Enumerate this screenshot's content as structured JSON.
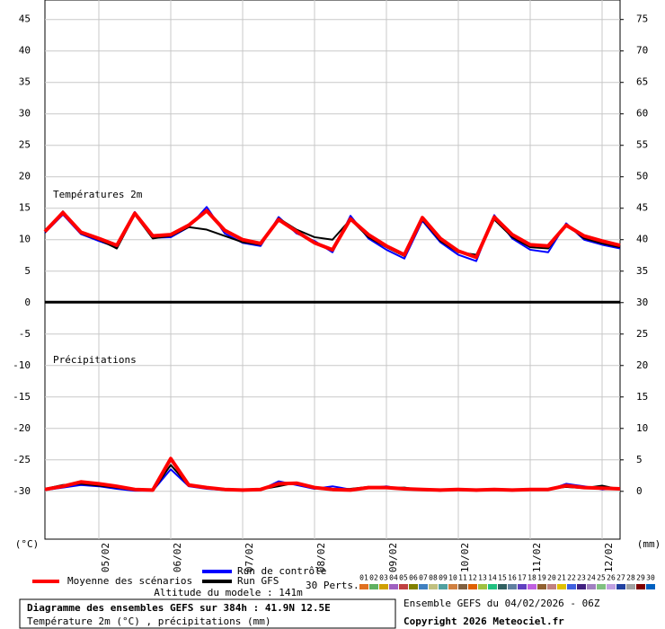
{
  "chart_data": {
    "type": "line",
    "temperature_label": "Températures 2m",
    "precipitation_label": "Précipitations",
    "ylabel": "(°C)",
    "y2label": "(mm)",
    "x": [
      0,
      6,
      12,
      18,
      24,
      30,
      36,
      42,
      48,
      54,
      60,
      66,
      72,
      78,
      84,
      90,
      96,
      102,
      108,
      114,
      120,
      126,
      132,
      138,
      144,
      150,
      156,
      162,
      168,
      174,
      180,
      186,
      192
    ],
    "xlim": [
      0,
      192
    ],
    "xticks": [
      {
        "value": 18,
        "label": "05/02"
      },
      {
        "value": 42,
        "label": "06/02"
      },
      {
        "value": 66,
        "label": "07/02"
      },
      {
        "value": 90,
        "label": "08/02"
      },
      {
        "value": 114,
        "label": "09/02"
      },
      {
        "value": 138,
        "label": "10/02"
      },
      {
        "value": 162,
        "label": "11/02"
      },
      {
        "value": 186,
        "label": "12/02"
      }
    ],
    "ylim": [
      -37.6,
      48.1
    ],
    "yticks": [
      45,
      40,
      35,
      30,
      25,
      20,
      15,
      10,
      5,
      0,
      -5,
      -10,
      -15,
      -20,
      -25,
      -30
    ],
    "y2lim": [
      -7.6,
      78.1
    ],
    "y2ticks": [
      75,
      70,
      65,
      60,
      55,
      50,
      45,
      40,
      35,
      30,
      25,
      20,
      15,
      10,
      5,
      0
    ],
    "grid": true,
    "series": [
      {
        "name": "Moyenne des scénarios",
        "color": "#ff0000",
        "values": [
          11.3,
          14.3,
          11.2,
          10.2,
          9.1,
          14.2,
          10.6,
          10.8,
          12.3,
          14.6,
          11.5,
          10.0,
          9.4,
          13.2,
          11.3,
          9.5,
          8.4,
          13.3,
          10.8,
          9.0,
          7.6,
          13.5,
          10.2,
          8.2,
          7.2,
          13.6,
          10.8,
          9.2,
          9.0,
          12.3,
          10.6,
          9.8,
          9.1
        ]
      },
      {
        "name": "Run de contrôle",
        "color": "#0000ff",
        "values": [
          11.1,
          14.0,
          10.9,
          9.8,
          8.8,
          14.4,
          10.3,
          10.4,
          12.0,
          15.2,
          11.0,
          9.5,
          9.0,
          13.6,
          11.0,
          9.8,
          8.0,
          13.8,
          10.2,
          8.4,
          7.0,
          13.0,
          9.6,
          7.6,
          6.6,
          13.9,
          10.2,
          8.4,
          8.0,
          12.6,
          10.0,
          9.2,
          8.6
        ]
      },
      {
        "name": "Run GFS",
        "color": "#000000",
        "values": [
          11.2,
          14.5,
          11.0,
          10.0,
          8.6,
          14.0,
          10.2,
          10.6,
          12.0,
          11.6,
          10.6,
          9.6,
          9.2,
          13.4,
          11.6,
          10.4,
          10.0,
          13.2,
          10.4,
          8.8,
          7.4,
          13.2,
          9.8,
          8.0,
          7.6,
          13.2,
          10.4,
          8.8,
          8.6,
          12.4,
          10.2,
          9.4,
          8.8
        ]
      },
      {
        "color": "#ff0000",
        "axis": "y2",
        "values": [
          0.3,
          0.8,
          1.5,
          1.2,
          0.8,
          0.3,
          0.2,
          5.2,
          1.0,
          0.6,
          0.3,
          0.2,
          0.3,
          1.2,
          1.3,
          0.6,
          0.3,
          0.2,
          0.6,
          0.6,
          0.4,
          0.3,
          0.2,
          0.3,
          0.2,
          0.3,
          0.2,
          0.3,
          0.3,
          0.9,
          0.6,
          0.5,
          0.4
        ]
      },
      {
        "color": "#0000ff",
        "axis": "y2",
        "values": [
          0.2,
          0.6,
          1.0,
          0.8,
          0.4,
          0.1,
          0.1,
          3.5,
          0.8,
          0.4,
          0.2,
          0.1,
          0.2,
          1.6,
          1.0,
          0.4,
          0.8,
          0.3,
          0.5,
          0.8,
          0.3,
          0.2,
          0.1,
          0.2,
          0.1,
          0.2,
          0.1,
          0.2,
          0.2,
          1.2,
          0.8,
          0.3,
          0.5
        ]
      },
      {
        "color": "#000000",
        "axis": "y2",
        "values": [
          0.4,
          1.0,
          1.2,
          0.9,
          0.6,
          0.2,
          0.1,
          4.2,
          0.9,
          0.5,
          0.3,
          0.1,
          0.3,
          0.8,
          1.4,
          0.5,
          0.2,
          0.4,
          0.7,
          0.5,
          0.6,
          0.2,
          0.1,
          0.4,
          0.1,
          0.3,
          0.2,
          0.2,
          0.4,
          0.7,
          0.5,
          0.9,
          0.3
        ]
      }
    ],
    "perturbations": {
      "label": "30 Perts.",
      "members": [
        {
          "name": "01",
          "color": "#e07020"
        },
        {
          "name": "02",
          "color": "#60b060"
        },
        {
          "name": "03",
          "color": "#d0a000"
        },
        {
          "name": "04",
          "color": "#a060c0"
        },
        {
          "name": "05",
          "color": "#c04040"
        },
        {
          "name": "06",
          "color": "#808000"
        },
        {
          "name": "07",
          "color": "#4080c0"
        },
        {
          "name": "08",
          "color": "#c0c080"
        },
        {
          "name": "09",
          "color": "#50a0a0"
        },
        {
          "name": "10",
          "color": "#d08040"
        },
        {
          "name": "11",
          "color": "#806040"
        },
        {
          "name": "12",
          "color": "#e06000"
        },
        {
          "name": "13",
          "color": "#a0c040"
        },
        {
          "name": "14",
          "color": "#20c080"
        },
        {
          "name": "15",
          "color": "#306060"
        },
        {
          "name": "16",
          "color": "#6080a0"
        },
        {
          "name": "17",
          "color": "#6040c0"
        },
        {
          "name": "18",
          "color": "#c060e0"
        },
        {
          "name": "19",
          "color": "#906030"
        },
        {
          "name": "20",
          "color": "#c08080"
        },
        {
          "name": "21",
          "color": "#e0c000"
        },
        {
          "name": "22",
          "color": "#4060e0"
        },
        {
          "name": "23",
          "color": "#402080"
        },
        {
          "name": "24",
          "color": "#a080c0"
        },
        {
          "name": "25",
          "color": "#80c080"
        },
        {
          "name": "26",
          "color": "#c0a0e0"
        },
        {
          "name": "27",
          "color": "#2040a0"
        },
        {
          "name": "28",
          "color": "#a0a0a0"
        },
        {
          "name": "29",
          "color": "#800000"
        },
        {
          "name": "30",
          "color": "#0060c0"
        }
      ]
    },
    "altitude": "Altitude du modele : 141m",
    "title": "Diagramme des ensembles GEFS sur 384h : 41.9N 12.5E",
    "subtitle": "Température 2m (°C) , précipitations (mm)",
    "run_info": "Ensemble GEFS du 04/02/2026 - 06Z",
    "copyright": "Copyright 2026 Meteociel.fr"
  }
}
